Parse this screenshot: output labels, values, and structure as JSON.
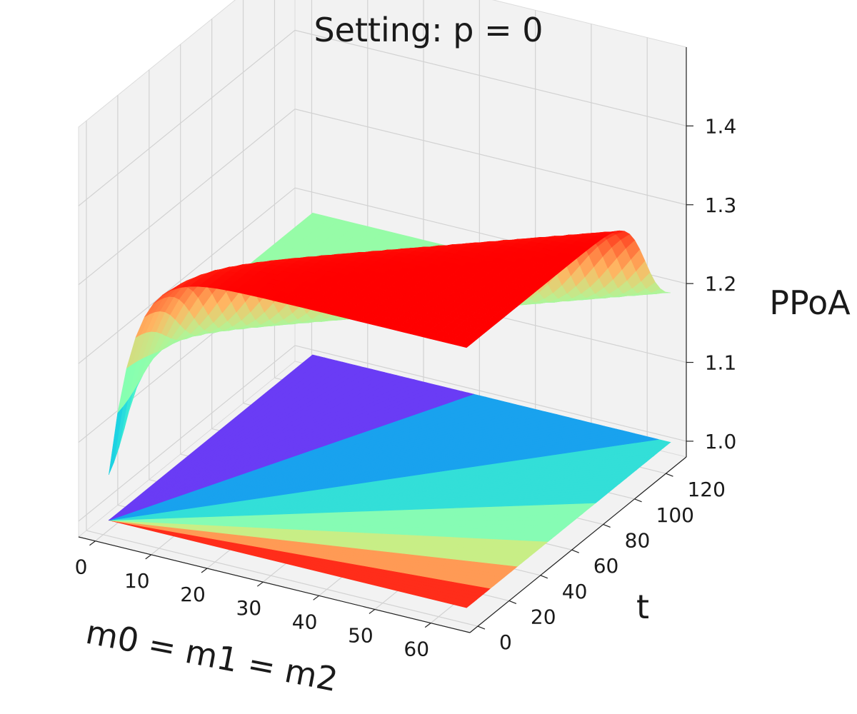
{
  "chart_data": {
    "type": "surface3d",
    "title": "Setting: p = 0",
    "xlabel": "m0 = m1 = m2",
    "ylabel": "t",
    "zlabel": "PPoA",
    "x_ticks": [
      "0",
      "10",
      "20",
      "30",
      "40",
      "50",
      "60"
    ],
    "y_ticks": [
      "0",
      "20",
      "40",
      "60",
      "80",
      "100",
      "120"
    ],
    "z_ticks": [
      "1.0",
      "1.1",
      "1.2",
      "1.3",
      "1.4"
    ],
    "xlim": [
      -3,
      67
    ],
    "ylim": [
      -5,
      133
    ],
    "zlim": [
      0.98,
      1.5
    ],
    "colormap": "rainbow",
    "surfaces": [
      {
        "kind": "curved",
        "description_shape": "rises from ~1.05 at m=1 to ~1.33 for small t; settles to ~1.18 for large t",
        "z_min": 1.04,
        "z_max": 1.33,
        "z_flat": 1.18
      },
      {
        "kind": "flat",
        "z": 1.0,
        "colors_by_band": [
          "#ff2d1a",
          "#ff9a55",
          "#c8ee86",
          "#86fcb4",
          "#33dfd8",
          "#19a2ee",
          "#6a3cf5"
        ]
      }
    ],
    "grid": true,
    "pane_color": "#f2f2f2"
  }
}
